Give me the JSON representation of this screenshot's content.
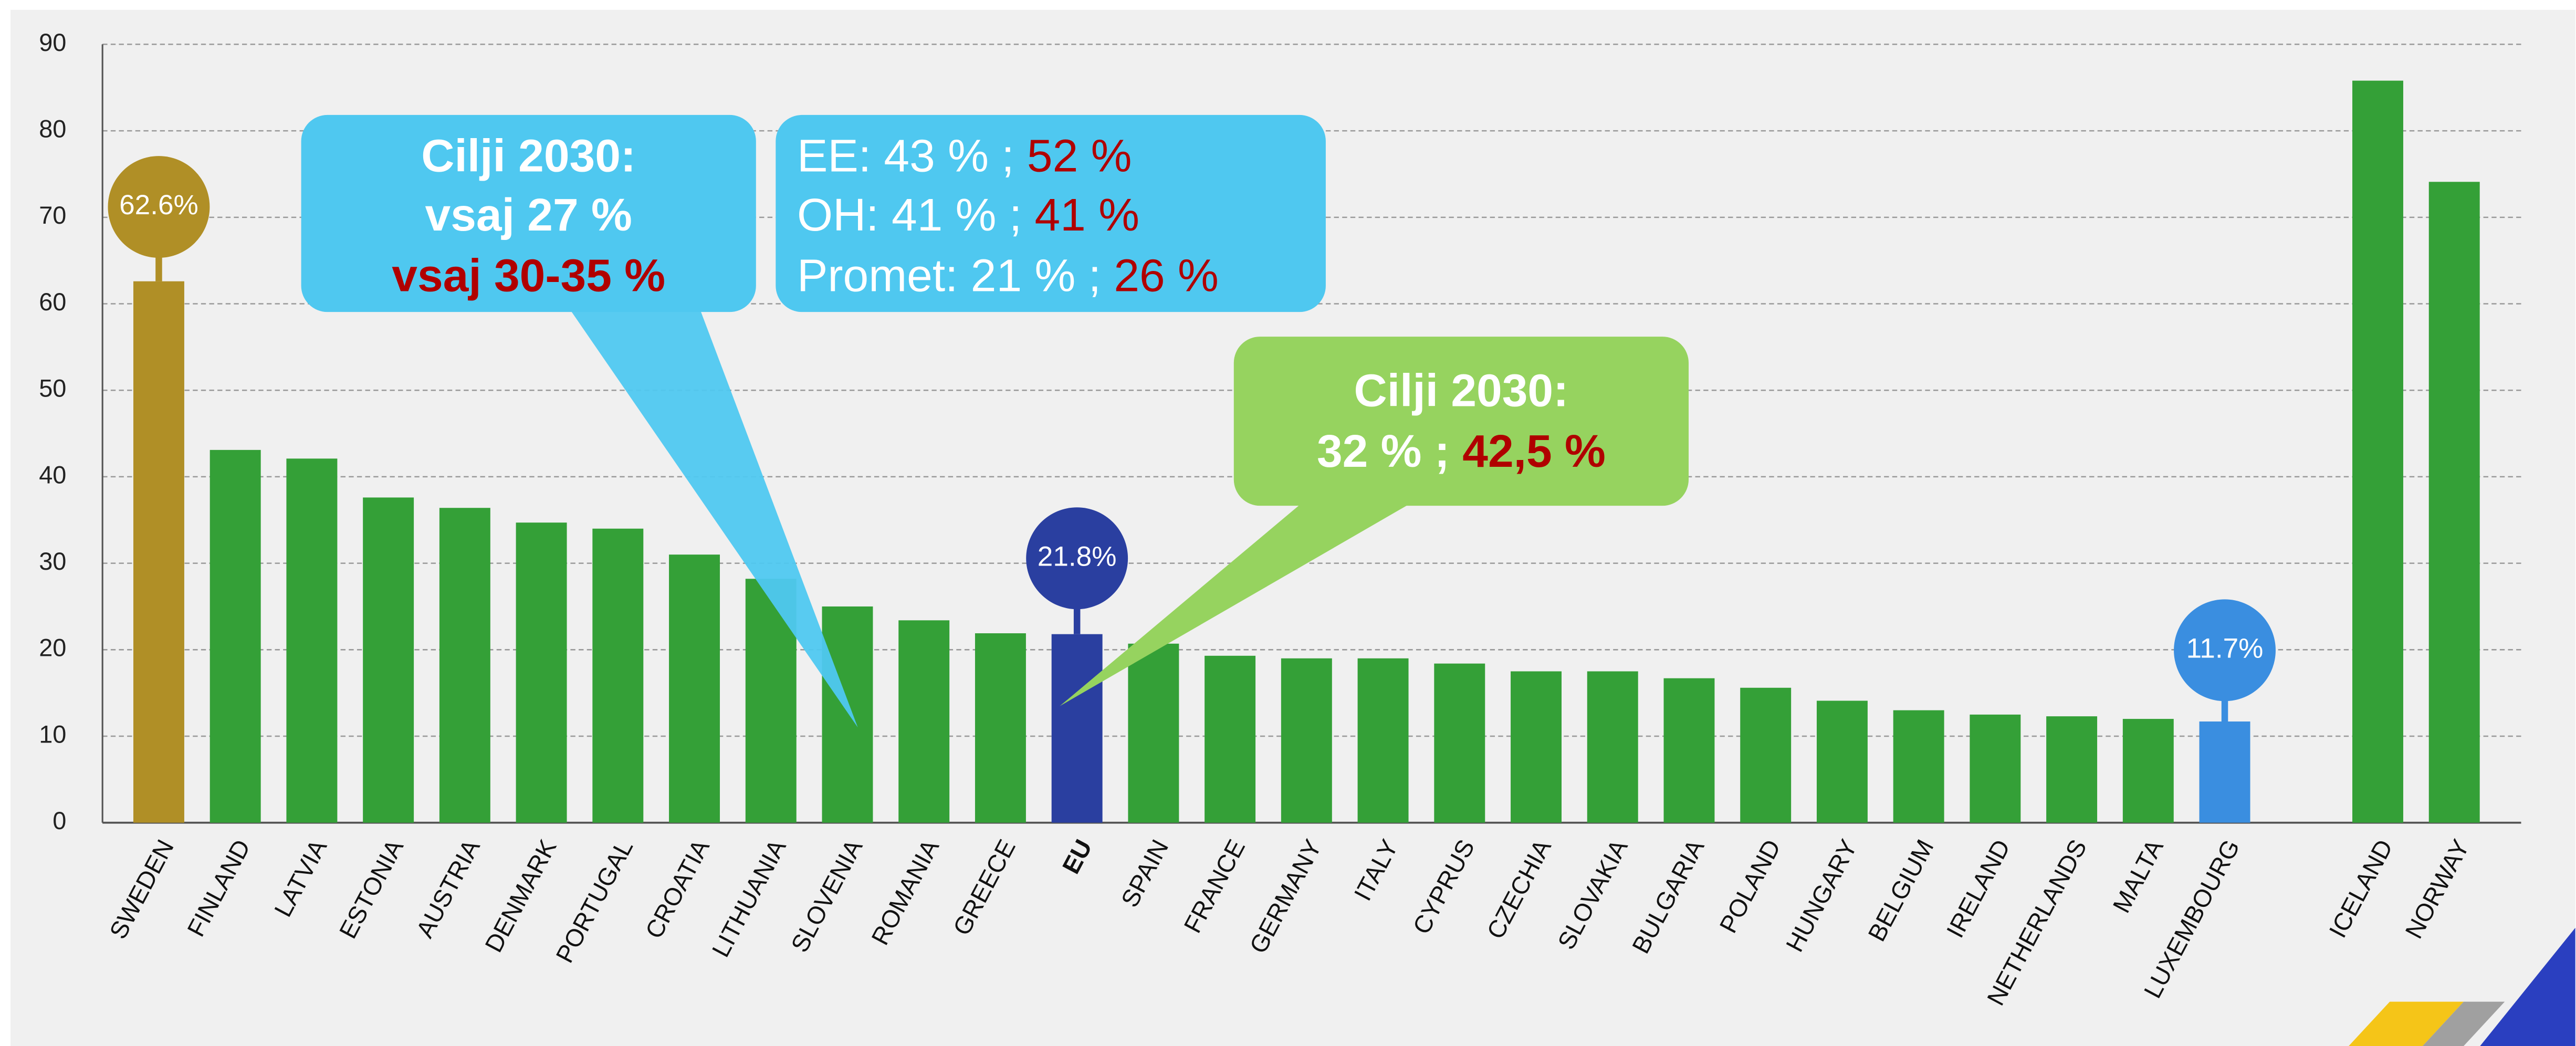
{
  "chart_data": {
    "type": "bar",
    "categories": [
      "SWEDEN",
      "FINLAND",
      "LATVIA",
      "ESTONIA",
      "AUSTRIA",
      "DENMARK",
      "PORTUGAL",
      "CROATIA",
      "LITHUANIA",
      "SLOVENIA",
      "ROMANIA",
      "GREECE",
      "EU",
      "SPAIN",
      "FRANCE",
      "GERMANY",
      "ITALY",
      "CYPRUS",
      "CZECHIA",
      "SLOVAKIA",
      "BULGARIA",
      "POLAND",
      "HUNGARY",
      "BELGIUM",
      "IRELAND",
      "NETHERLANDS",
      "MALTA",
      "LUXEMBOURG",
      null,
      "ICELAND",
      "NORWAY"
    ],
    "values": [
      62.6,
      43.1,
      42.1,
      37.6,
      36.4,
      34.7,
      34.0,
      31.0,
      28.2,
      25.0,
      23.4,
      21.9,
      21.8,
      20.7,
      19.3,
      19.0,
      19.0,
      18.4,
      17.5,
      17.5,
      16.7,
      15.6,
      14.1,
      13.0,
      12.5,
      12.3,
      12.0,
      11.7,
      null,
      85.8,
      74.1
    ],
    "value_labels": [
      "62.6%",
      null,
      null,
      null,
      null,
      null,
      null,
      null,
      null,
      null,
      null,
      null,
      "21.8%",
      null,
      null,
      null,
      null,
      null,
      null,
      null,
      null,
      null,
      null,
      null,
      null,
      null,
      null,
      "11.7%",
      null,
      null,
      null
    ],
    "colors": [
      "#b08f26",
      "#34a037",
      "#34a037",
      "#34a037",
      "#34a037",
      "#34a037",
      "#34a037",
      "#34a037",
      "#34a037",
      "#34a037",
      "#34a037",
      "#34a037",
      "#2a3fa0",
      "#34a037",
      "#34a037",
      "#34a037",
      "#34a037",
      "#34a037",
      "#34a037",
      "#34a037",
      "#34a037",
      "#34a037",
      "#34a037",
      "#34a037",
      "#34a037",
      "#34a037",
      "#34a037",
      "#3a8ee0",
      null,
      "#34a037",
      "#34a037"
    ],
    "ylim": [
      0,
      90
    ],
    "yticks": [
      0,
      10,
      20,
      30,
      40,
      50,
      60,
      70,
      80,
      90
    ],
    "grid": true,
    "annotations": [
      {
        "lines": [
          [
            {
              "text": "Cilji 2030:"
            }
          ],
          [
            {
              "text": "vsaj 27 %"
            }
          ],
          [
            {
              "text": "vsaj 30-35 %",
              "color": "#b00000"
            }
          ]
        ]
      },
      {
        "lines": [
          [
            {
              "text": "EE: 43 % ; "
            },
            {
              "text": "52 %",
              "color": "#b00000"
            }
          ],
          [
            {
              "text": "OH: 41 % ; "
            },
            {
              "text": "41 %",
              "color": "#b00000"
            }
          ],
          [
            {
              "text": "Promet: 21 % ; "
            },
            {
              "text": "26 %",
              "color": "#b00000"
            }
          ]
        ]
      },
      {
        "lines": [
          [
            {
              "text": "Cilji 2030:"
            }
          ],
          [
            {
              "text": "32 % ; "
            },
            {
              "text": "42,5 %",
              "color": "#b00000"
            }
          ]
        ]
      }
    ]
  }
}
